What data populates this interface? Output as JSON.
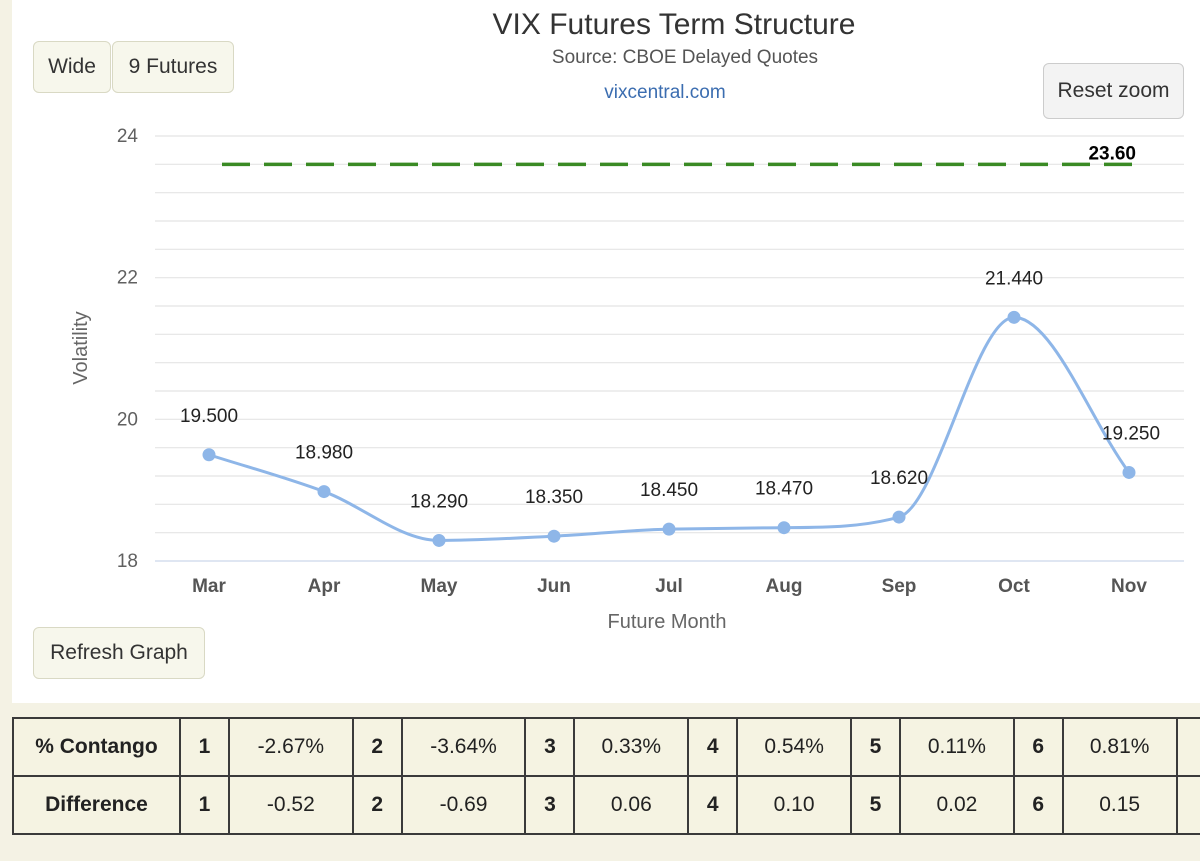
{
  "buttons": {
    "wide": "Wide",
    "futures": "9 Futures",
    "reset_zoom": "Reset zoom",
    "refresh": "Refresh Graph"
  },
  "chart_data": {
    "type": "line",
    "title": "VIX Futures Term Structure",
    "subtitle": "Source: CBOE Delayed Quotes",
    "credit": "vixcentral.com",
    "xlabel": "Future Month",
    "ylabel": "Volatility",
    "categories": [
      "Mar",
      "Apr",
      "May",
      "Jun",
      "Jul",
      "Aug",
      "Sep",
      "Oct",
      "Nov"
    ],
    "series": [
      {
        "values": [
          19.5,
          18.98,
          18.29,
          18.35,
          18.45,
          18.47,
          18.62,
          21.44,
          19.25
        ],
        "labels": [
          "19.500",
          "18.980",
          "18.290",
          "18.350",
          "18.450",
          "18.470",
          "18.620",
          "21.440",
          "19.250"
        ],
        "color": "#8eb6e8"
      }
    ],
    "reference_line": {
      "value": 23.6,
      "label": "23.60",
      "color": "#3a8a24",
      "style": "dashed"
    },
    "ylim": [
      18,
      24
    ],
    "yticks": [
      "18",
      "20",
      "22",
      "24"
    ],
    "ytick_values": [
      18,
      20,
      22,
      24
    ],
    "grid": true,
    "grid_minor_step": 0.4
  },
  "table": {
    "rows": [
      {
        "header": "% Contango",
        "cells": [
          {
            "idx": "1",
            "val": "-2.67%"
          },
          {
            "idx": "2",
            "val": "-3.64%"
          },
          {
            "idx": "3",
            "val": "0.33%"
          },
          {
            "idx": "4",
            "val": "0.54%"
          },
          {
            "idx": "5",
            "val": "0.11%"
          },
          {
            "idx": "6",
            "val": "0.81%"
          }
        ]
      },
      {
        "header": "Difference",
        "cells": [
          {
            "idx": "1",
            "val": "-0.52"
          },
          {
            "idx": "2",
            "val": "-0.69"
          },
          {
            "idx": "3",
            "val": "0.06"
          },
          {
            "idx": "4",
            "val": "0.10"
          },
          {
            "idx": "5",
            "val": "0.02"
          },
          {
            "idx": "6",
            "val": "0.15"
          }
        ]
      }
    ]
  }
}
